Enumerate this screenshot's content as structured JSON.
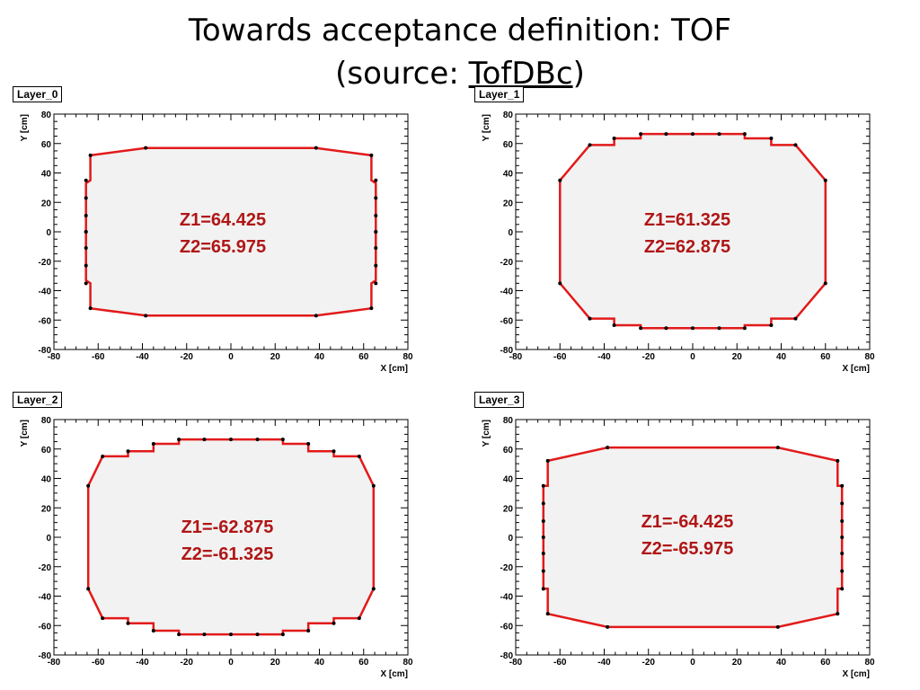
{
  "title": {
    "line1": "Towards acceptance definition: TOF",
    "line2_prefix": "(source: ",
    "line2_underlined": "TofDBc",
    "line2_suffix": ")"
  },
  "colors": {
    "outline": "#e21a1a",
    "fill": "#f2f2f2",
    "marker": "#000000",
    "annotation": "#b01616"
  },
  "chart_data": [
    {
      "type": "line",
      "title": "Layer_0",
      "xlabel": "X [cm]",
      "ylabel": "Y [cm]",
      "xlim": [
        -80,
        80
      ],
      "ylim": [
        -80,
        80
      ],
      "ticks": [
        -80,
        -60,
        -40,
        -20,
        0,
        20,
        40,
        60,
        80
      ],
      "grid": false,
      "annotations": [
        "Z1=64.425",
        "Z2=65.975"
      ],
      "outline": {
        "x": [
          -63.5,
          -38.5,
          38.5,
          63.5,
          63.5,
          65.5,
          65.5,
          63.5,
          63.5,
          38.5,
          -38.5,
          -63.5,
          -63.5,
          -65.5,
          -65.5,
          -63.5,
          -63.5
        ],
        "y": [
          52,
          57,
          57,
          52,
          35,
          33,
          -33,
          -35,
          -52,
          -57,
          -57,
          -52,
          -35,
          -33,
          33,
          35,
          52
        ]
      },
      "points": {
        "x": [
          -38.5,
          38.5,
          -63.5,
          63.5,
          -63.5,
          63.5,
          -38.5,
          38.5,
          -65.5,
          -65.5,
          -65.5,
          -65.5,
          -65.5,
          -65.5,
          -65.5,
          -65.5,
          65.5,
          65.5,
          65.5,
          65.5,
          65.5,
          65.5,
          65.5,
          65.5
        ],
        "y": [
          57,
          57,
          52,
          52,
          -52,
          -52,
          -57,
          -57,
          35,
          23,
          11,
          0,
          -11,
          -23,
          -35,
          0,
          35,
          23,
          11,
          0,
          -11,
          -23,
          -35,
          0
        ]
      }
    },
    {
      "type": "line",
      "title": "Layer_1",
      "xlabel": "X [cm]",
      "ylabel": "Y [cm]",
      "xlim": [
        -80,
        80
      ],
      "ylim": [
        -80,
        80
      ],
      "ticks": [
        -80,
        -60,
        -40,
        -20,
        0,
        20,
        40,
        60,
        80
      ],
      "grid": false,
      "annotations": [
        "Z1=61.325",
        "Z2=62.875"
      ],
      "outline": {
        "x": [
          -60,
          -46.5,
          -35.5,
          -35.5,
          -23.5,
          -23.5,
          23.5,
          23.5,
          35.5,
          35.5,
          46.5,
          60,
          60,
          46.5,
          35.5,
          35.5,
          23.5,
          23.5,
          -23.5,
          -23.5,
          -35.5,
          -35.5,
          -46.5,
          -60,
          -60
        ],
        "y": [
          35,
          59,
          59,
          63.5,
          63.5,
          66.5,
          66.5,
          63.5,
          63.5,
          59,
          59,
          35,
          -35,
          -59,
          -59,
          -63.5,
          -63.5,
          -65.5,
          -65.5,
          -63.5,
          -63.5,
          -59,
          -59,
          -35,
          35
        ]
      },
      "points": {
        "x": [
          -60,
          -60,
          60,
          60,
          -46.5,
          46.5,
          -46.5,
          46.5,
          -35.5,
          35.5,
          -35.5,
          35.5,
          -23.5,
          -12,
          0,
          12,
          23.5,
          -23.5,
          -12,
          0,
          12,
          23.5
        ],
        "y": [
          35,
          -35,
          35,
          -35,
          59,
          59,
          -59,
          -59,
          63.5,
          63.5,
          -63.5,
          -63.5,
          66.5,
          66.5,
          66.5,
          66.5,
          66.5,
          -65.5,
          -65.5,
          -65.5,
          -65.5,
          -65.5
        ]
      }
    },
    {
      "type": "line",
      "title": "Layer_2",
      "xlabel": "X [cm]",
      "ylabel": "Y [cm]",
      "xlim": [
        -80,
        80
      ],
      "ylim": [
        -80,
        80
      ],
      "ticks": [
        -80,
        -60,
        -40,
        -20,
        0,
        20,
        40,
        60,
        80
      ],
      "grid": false,
      "annotations": [
        "Z1=-62.875",
        "Z2=-61.325"
      ],
      "outline": {
        "x": [
          -64.5,
          -58,
          -46.5,
          -46.5,
          -35,
          -35,
          -23.5,
          -23.5,
          23.5,
          23.5,
          35,
          35,
          46.5,
          46.5,
          58,
          64.5,
          64.5,
          58,
          46.5,
          46.5,
          35,
          35,
          23.5,
          23.5,
          -23.5,
          -23.5,
          -35,
          -35,
          -46.5,
          -46.5,
          -58,
          -64.5,
          -64.5
        ],
        "y": [
          35,
          55,
          55,
          58.5,
          58.5,
          63.5,
          63.5,
          66.5,
          66.5,
          63.5,
          63.5,
          58.5,
          58.5,
          55,
          55,
          35,
          -35,
          -55,
          -55,
          -58.5,
          -58.5,
          -63.5,
          -63.5,
          -66,
          -66,
          -63.5,
          -63.5,
          -58.5,
          -58.5,
          -55,
          -55,
          -35,
          35
        ]
      },
      "points": {
        "x": [
          -64.5,
          -64.5,
          64.5,
          64.5,
          -58,
          58,
          -58,
          58,
          -46.5,
          46.5,
          -46.5,
          46.5,
          -35,
          35,
          -35,
          35,
          -23.5,
          -12,
          0,
          12,
          23.5,
          -23.5,
          -12,
          0,
          12,
          23.5
        ],
        "y": [
          35,
          -35,
          35,
          -35,
          55,
          55,
          -55,
          -55,
          58.5,
          58.5,
          -58.5,
          -58.5,
          63.5,
          63.5,
          -63.5,
          -63.5,
          66.5,
          66.5,
          66.5,
          66.5,
          66.5,
          -66,
          -66,
          -66,
          -66,
          -66
        ]
      }
    },
    {
      "type": "line",
      "title": "Layer_3",
      "xlabel": "X [cm]",
      "ylabel": "Y [cm]",
      "xlim": [
        -80,
        80
      ],
      "ylim": [
        -80,
        80
      ],
      "ticks": [
        -80,
        -60,
        -40,
        -20,
        0,
        20,
        40,
        60,
        80
      ],
      "grid": false,
      "annotations": [
        "Z1=-64.425",
        "Z2=-65.975"
      ],
      "outline": {
        "x": [
          -65.5,
          -38.5,
          38.5,
          65.5,
          65.5,
          67.5,
          67.5,
          65.5,
          65.5,
          38.5,
          -38.5,
          -65.5,
          -65.5,
          -67.5,
          -67.5,
          -65.5,
          -65.5
        ],
        "y": [
          52,
          61,
          61,
          52,
          35,
          35,
          -35,
          -35,
          -52,
          -61,
          -61,
          -52,
          -35,
          -35,
          35,
          35,
          52
        ]
      },
      "points": {
        "x": [
          -38.5,
          38.5,
          -65.5,
          65.5,
          -65.5,
          65.5,
          -38.5,
          38.5,
          -67.5,
          -67.5,
          -67.5,
          -67.5,
          -67.5,
          -67.5,
          -67.5,
          67.5,
          67.5,
          67.5,
          67.5,
          67.5,
          67.5,
          67.5
        ],
        "y": [
          61,
          61,
          52,
          52,
          -52,
          -52,
          -61,
          -61,
          35,
          23,
          11,
          0,
          -11,
          -23,
          -35,
          35,
          23,
          11,
          0,
          -11,
          -23,
          -35
        ]
      }
    }
  ]
}
